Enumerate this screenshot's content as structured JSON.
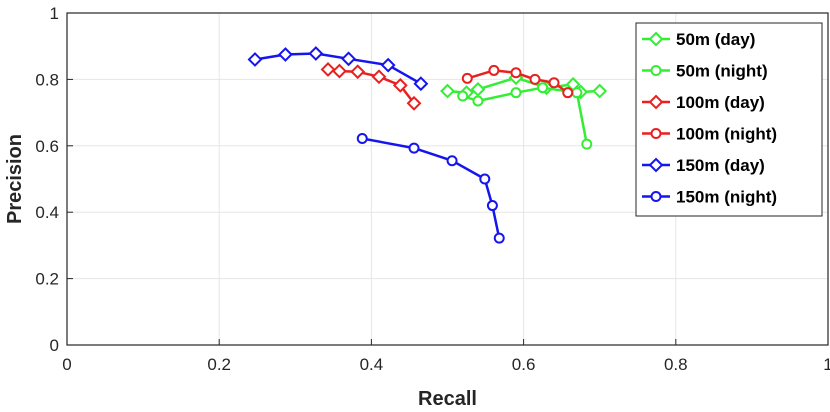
{
  "chart_data": {
    "type": "line",
    "title": "",
    "xlabel": "Recall",
    "ylabel": "Precision",
    "xlim": [
      0,
      1
    ],
    "ylim": [
      0,
      1
    ],
    "xticks": [
      "0",
      "0.2",
      "0.4",
      "0.6",
      "0.8",
      "1"
    ],
    "yticks": [
      "0",
      "0.2",
      "0.4",
      "0.6",
      "0.8",
      "1"
    ],
    "grid": true,
    "legend_position": "top-right",
    "series": [
      {
        "name": "50m (day)",
        "color": "#33ee33",
        "marker": "diamond",
        "x": [
          0.5,
          0.525,
          0.54,
          0.59,
          0.63,
          0.665,
          0.675,
          0.7
        ],
        "y": [
          0.765,
          0.76,
          0.77,
          0.805,
          0.775,
          0.785,
          0.762,
          0.765
        ]
      },
      {
        "name": "50m (night)",
        "color": "#33ee33",
        "marker": "circle",
        "x": [
          0.52,
          0.54,
          0.59,
          0.625,
          0.67,
          0.683
        ],
        "y": [
          0.75,
          0.735,
          0.76,
          0.775,
          0.76,
          0.605
        ]
      },
      {
        "name": "100m (day)",
        "color": "#e82020",
        "marker": "diamond",
        "x": [
          0.343,
          0.358,
          0.382,
          0.41,
          0.438,
          0.456
        ],
        "y": [
          0.83,
          0.825,
          0.823,
          0.808,
          0.782,
          0.728
        ]
      },
      {
        "name": "100m (night)",
        "color": "#e82020",
        "marker": "circle",
        "x": [
          0.526,
          0.561,
          0.59,
          0.615,
          0.64,
          0.658
        ],
        "y": [
          0.803,
          0.827,
          0.82,
          0.8,
          0.79,
          0.76
        ]
      },
      {
        "name": "150m (day)",
        "color": "#1515ee",
        "marker": "diamond",
        "x": [
          0.247,
          0.287,
          0.327,
          0.37,
          0.422,
          0.465
        ],
        "y": [
          0.86,
          0.875,
          0.878,
          0.862,
          0.843,
          0.787
        ]
      },
      {
        "name": "150m (night)",
        "color": "#1515ee",
        "marker": "circle",
        "x": [
          0.388,
          0.456,
          0.506,
          0.549,
          0.559,
          0.568
        ],
        "y": [
          0.622,
          0.593,
          0.555,
          0.5,
          0.42,
          0.322
        ]
      }
    ]
  }
}
